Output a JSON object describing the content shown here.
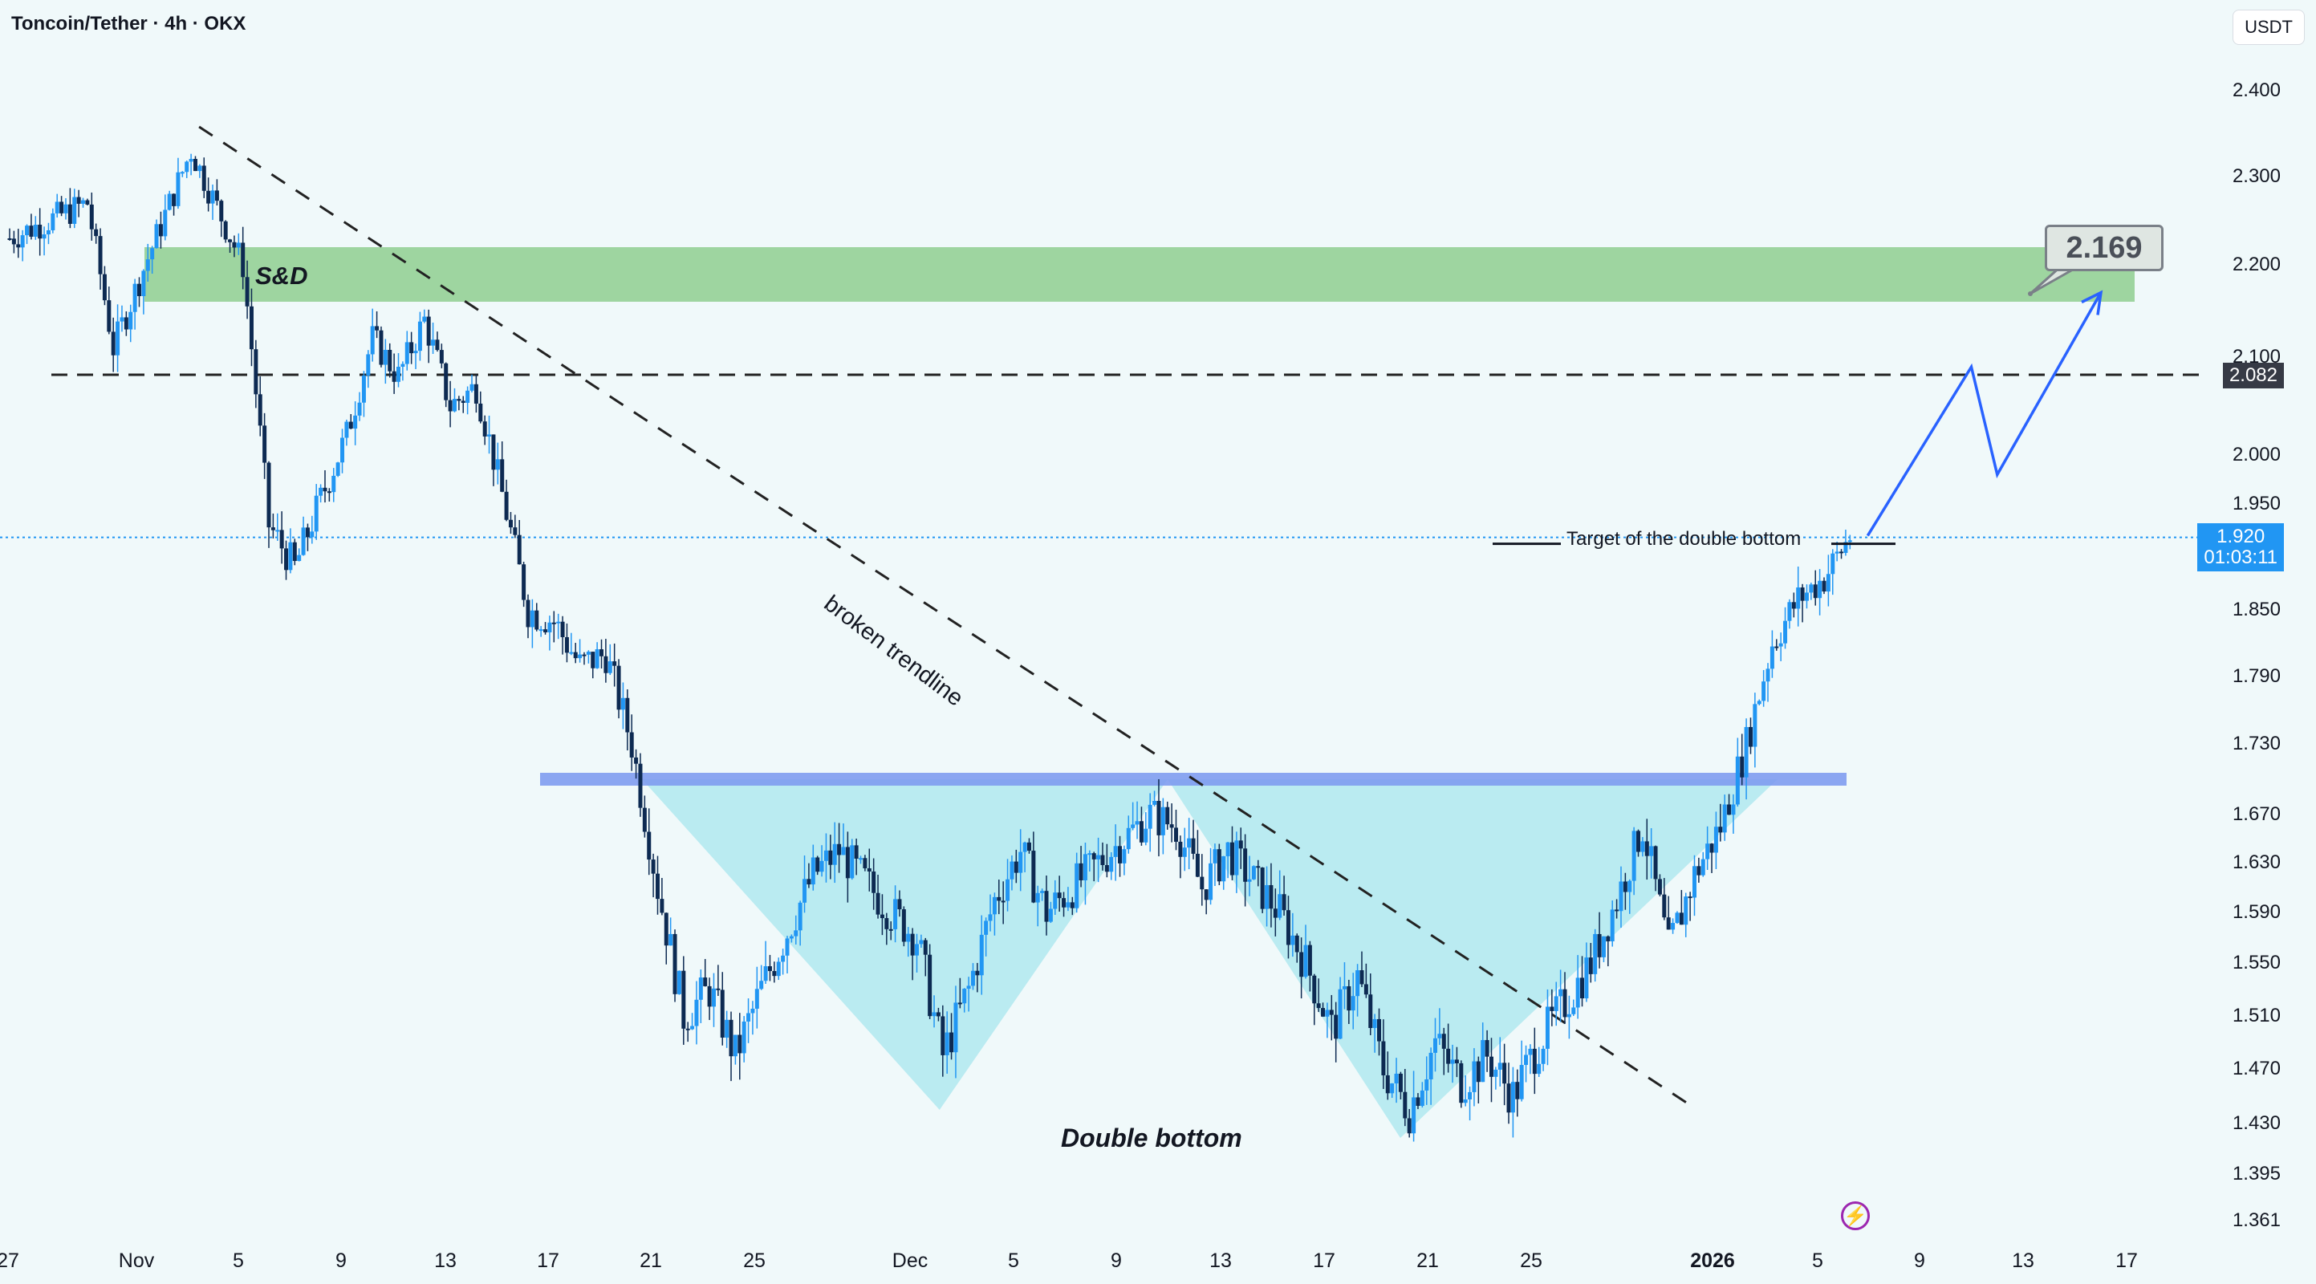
{
  "header": {
    "pair_title": "Toncoin/Tether · 4h · OKX"
  },
  "price_axis": {
    "currency": "USDT",
    "ticks": [
      "2.400",
      "2.300",
      "2.200",
      "2.100",
      "2.000",
      "1.950",
      "1.850",
      "1.790",
      "1.730",
      "1.670",
      "1.630",
      "1.590",
      "1.550",
      "1.510",
      "1.470",
      "1.430",
      "1.395",
      "1.361"
    ],
    "level_tag": "2.082",
    "current_price": "1.920",
    "countdown": "01:03:11"
  },
  "time_axis": [
    {
      "label": "27",
      "bold": false
    },
    {
      "label": "Nov",
      "bold": false
    },
    {
      "label": "5",
      "bold": false
    },
    {
      "label": "9",
      "bold": false
    },
    {
      "label": "13",
      "bold": false
    },
    {
      "label": "17",
      "bold": false
    },
    {
      "label": "21",
      "bold": false
    },
    {
      "label": "25",
      "bold": false
    },
    {
      "label": "Dec",
      "bold": false
    },
    {
      "label": "5",
      "bold": false
    },
    {
      "label": "9",
      "bold": false
    },
    {
      "label": "13",
      "bold": false
    },
    {
      "label": "17",
      "bold": false
    },
    {
      "label": "21",
      "bold": false
    },
    {
      "label": "25",
      "bold": false
    },
    {
      "label": "2026",
      "bold": true
    },
    {
      "label": "5",
      "bold": false
    },
    {
      "label": "9",
      "bold": false
    },
    {
      "label": "13",
      "bold": false
    },
    {
      "label": "17",
      "bold": false
    }
  ],
  "annotations": {
    "supply_demand": "S&D",
    "trendline": "broken trendline",
    "pattern": "Double bottom",
    "target": "Target of the double bottom",
    "target_price": "2.169"
  },
  "colors": {
    "candle_up": "#2196f3",
    "candle_down": "#0d2a52",
    "zone": "#8fcf8f",
    "neckline": "#7f9cf0",
    "pattern_fill": "#a8e6ee",
    "projection": "#2962ff",
    "current_price": "#2196f3",
    "level_tag": "#363a45"
  },
  "chart_data": {
    "type": "candlestick",
    "title": "Toncoin/Tether · 4h · OKX",
    "y_unit": "USDT",
    "y_range": [
      1.34,
      2.43
    ],
    "x_range": [
      "2025-10-27",
      "2026-01-17"
    ],
    "price_path": [
      {
        "x": "2025-10-27",
        "y": 2.23
      },
      {
        "x": "2025-10-30",
        "y": 2.27
      },
      {
        "x": "2025-10-31",
        "y": 2.11
      },
      {
        "x": "2025-11-03",
        "y": 2.33
      },
      {
        "x": "2025-11-05",
        "y": 2.2
      },
      {
        "x": "2025-11-06",
        "y": 1.93
      },
      {
        "x": "2025-11-07",
        "y": 1.89
      },
      {
        "x": "2025-11-09",
        "y": 2.02
      },
      {
        "x": "2025-11-10",
        "y": 2.12
      },
      {
        "x": "2025-11-11",
        "y": 2.08
      },
      {
        "x": "2025-11-12",
        "y": 2.14
      },
      {
        "x": "2025-11-13",
        "y": 2.05
      },
      {
        "x": "2025-11-14",
        "y": 2.07
      },
      {
        "x": "2025-11-15",
        "y": 1.96
      },
      {
        "x": "2025-11-16",
        "y": 1.85
      },
      {
        "x": "2025-11-17",
        "y": 1.84
      },
      {
        "x": "2025-11-18",
        "y": 1.8
      },
      {
        "x": "2025-11-19",
        "y": 1.81
      },
      {
        "x": "2025-11-20",
        "y": 1.73
      },
      {
        "x": "2025-11-21",
        "y": 1.61
      },
      {
        "x": "2025-11-22",
        "y": 1.51
      },
      {
        "x": "2025-11-23",
        "y": 1.53
      },
      {
        "x": "2025-11-24",
        "y": 1.48
      },
      {
        "x": "2025-11-25",
        "y": 1.53
      },
      {
        "x": "2025-11-27",
        "y": 1.62
      },
      {
        "x": "2025-11-28",
        "y": 1.64
      },
      {
        "x": "2025-11-30",
        "y": 1.59
      },
      {
        "x": "2025-12-01",
        "y": 1.57
      },
      {
        "x": "2025-12-02",
        "y": 1.48
      },
      {
        "x": "2025-12-03",
        "y": 1.53
      },
      {
        "x": "2025-12-04",
        "y": 1.6
      },
      {
        "x": "2025-12-05",
        "y": 1.64
      },
      {
        "x": "2025-12-06",
        "y": 1.59
      },
      {
        "x": "2025-12-08",
        "y": 1.63
      },
      {
        "x": "2025-12-10",
        "y": 1.67
      },
      {
        "x": "2025-12-11",
        "y": 1.66
      },
      {
        "x": "2025-12-12",
        "y": 1.61
      },
      {
        "x": "2025-12-13",
        "y": 1.64
      },
      {
        "x": "2025-12-15",
        "y": 1.59
      },
      {
        "x": "2025-12-16",
        "y": 1.55
      },
      {
        "x": "2025-12-17",
        "y": 1.5
      },
      {
        "x": "2025-12-18",
        "y": 1.54
      },
      {
        "x": "2025-12-19",
        "y": 1.47
      },
      {
        "x": "2025-12-20",
        "y": 1.44
      },
      {
        "x": "2025-12-21",
        "y": 1.49
      },
      {
        "x": "2025-12-22",
        "y": 1.46
      },
      {
        "x": "2025-12-23",
        "y": 1.48
      },
      {
        "x": "2025-12-24",
        "y": 1.45
      },
      {
        "x": "2025-12-25",
        "y": 1.49
      },
      {
        "x": "2025-12-26",
        "y": 1.52
      },
      {
        "x": "2025-12-27",
        "y": 1.55
      },
      {
        "x": "2025-12-28",
        "y": 1.6
      },
      {
        "x": "2025-12-29",
        "y": 1.66
      },
      {
        "x": "2025-12-30",
        "y": 1.56
      },
      {
        "x": "2025-12-31",
        "y": 1.62
      },
      {
        "x": "2026-01-01",
        "y": 1.66
      },
      {
        "x": "2026-01-02",
        "y": 1.73
      },
      {
        "x": "2026-01-03",
        "y": 1.82
      },
      {
        "x": "2026-01-04",
        "y": 1.86
      },
      {
        "x": "2026-01-05",
        "y": 1.88
      },
      {
        "x": "2026-01-06",
        "y": 1.92
      }
    ],
    "zones": [
      {
        "label": "S&D",
        "from": 2.16,
        "to": 2.22
      }
    ],
    "horizontal_levels": [
      {
        "y": 2.082,
        "style": "dashed"
      },
      {
        "y": 1.92,
        "style": "dotted",
        "label": "current price"
      },
      {
        "y": 1.7,
        "style": "solid",
        "label": "neckline"
      }
    ],
    "trendline": {
      "label": "broken trendline",
      "from": {
        "x": "2025-11-03",
        "y": 2.38
      },
      "to": {
        "x": "2026-01-01",
        "y": 1.44
      }
    },
    "pattern": {
      "label": "Double bottom",
      "lows": [
        {
          "x": "2025-12-02",
          "y": 1.44
        },
        {
          "x": "2025-12-20",
          "y": 1.42
        }
      ],
      "neckline": 1.7
    },
    "target": {
      "label": "Target of the double bottom",
      "y": 1.92
    },
    "projection": [
      {
        "x": "2026-01-06",
        "y": 1.92
      },
      {
        "x": "2026-01-10",
        "y": 2.09
      },
      {
        "x": "2026-01-11",
        "y": 1.98
      },
      {
        "x": "2026-01-15",
        "y": 2.17
      }
    ],
    "callout_value": 2.169
  }
}
